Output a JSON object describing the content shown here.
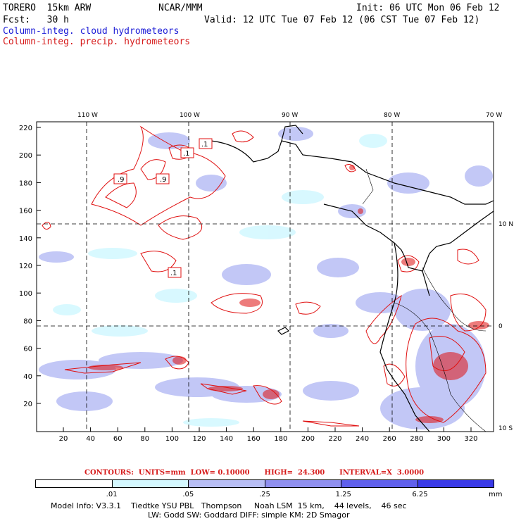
{
  "header": {
    "model": "TORERO  15km ARW",
    "center": "NCAR/MMM",
    "init": "Init: 06 UTC Mon 06 Feb 12",
    "fcst": "Fcst:   30 h",
    "valid": "Valid: 12 UTC Tue 07 Feb 12 (06 CST Tue 07 Feb 12)",
    "field_cloud": "Column-integ. cloud hydrometeors",
    "field_precip": "Column-integ. precip. hydrometeors"
  },
  "map": {
    "lon_labels": [
      "110 W",
      "100 W",
      "90 W",
      "80 W",
      "70 W"
    ],
    "lat_labels": [
      "10 N",
      "0",
      "10 S"
    ],
    "y_ticks": [
      "220",
      "200",
      "180",
      "160",
      "140",
      "120",
      "100",
      "80",
      "60",
      "40",
      "20"
    ],
    "x_ticks": [
      "20",
      "40",
      "60",
      "80",
      "100",
      "120",
      "140",
      "160",
      "180",
      "200",
      "220",
      "240",
      "260",
      "280",
      "300",
      "320"
    ],
    "contour_labels": [
      ".1",
      ".9",
      ".9",
      ".1",
      ".1"
    ]
  },
  "legend": {
    "contours_text": "CONTOURS:  UNITS=mm  LOW= 0.10000      HIGH=  24.300      INTERVAL=X  3.0000",
    "bins": [
      ".01",
      ".05",
      ".25",
      "1.25",
      "6.25"
    ],
    "units": "mm",
    "colors": [
      "#ffffff",
      "#d4f8ff",
      "#b8bef5",
      "#9090f0",
      "#6060ec",
      "#3a3ae8"
    ]
  },
  "footer": {
    "line1": "Model Info: V3.3.1    Tiedtke YSU PBL   Thompson     Noah LSM  15 km,    44 levels,    46 sec",
    "line2": "LW: Godd SW: Goddard DIFF: simple KM: 2D Smagor"
  }
}
